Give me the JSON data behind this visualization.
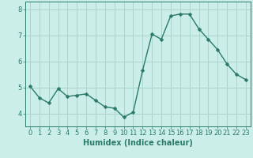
{
  "x": [
    0,
    1,
    2,
    3,
    4,
    5,
    6,
    7,
    8,
    9,
    10,
    11,
    12,
    13,
    14,
    15,
    16,
    17,
    18,
    19,
    20,
    21,
    22,
    23
  ],
  "y": [
    5.05,
    4.6,
    4.4,
    4.95,
    4.65,
    4.7,
    4.75,
    4.5,
    4.25,
    4.2,
    3.85,
    4.05,
    5.65,
    7.05,
    6.85,
    7.75,
    7.82,
    7.82,
    7.25,
    6.85,
    6.45,
    5.9,
    5.5,
    5.3
  ],
  "line_color": "#2a7a6a",
  "marker": "D",
  "marker_size": 2.5,
  "bg_color": "#cceee8",
  "grid_color": "#aad4cc",
  "axis_color": "#2a7a6a",
  "xlabel": "Humidex (Indice chaleur)",
  "xlim": [
    -0.5,
    23.5
  ],
  "ylim": [
    3.5,
    8.3
  ],
  "yticks": [
    4,
    5,
    6,
    7,
    8
  ],
  "xticks": [
    0,
    1,
    2,
    3,
    4,
    5,
    6,
    7,
    8,
    9,
    10,
    11,
    12,
    13,
    14,
    15,
    16,
    17,
    18,
    19,
    20,
    21,
    22,
    23
  ],
  "xlabel_fontsize": 7.0,
  "tick_fontsize": 6.0
}
